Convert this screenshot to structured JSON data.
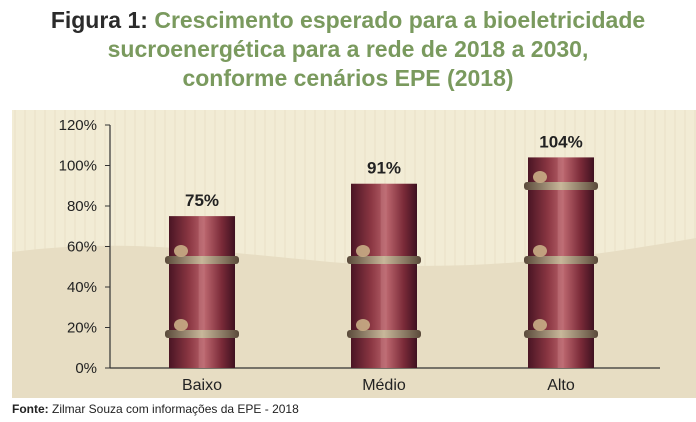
{
  "title": {
    "prefix": "Figura 1:",
    "line1": "Crescimento esperado para a bioeletricidade",
    "line2": "sucroenergética para a rede de 2018 a 2030,",
    "line3": "conforme cenários EPE (2018)"
  },
  "source": {
    "label": "Fonte:",
    "text": "Zilmar Souza com informações da EPE - 2018"
  },
  "colors": {
    "background": "#f2ecd5",
    "wave": "#e7ddc3",
    "cane_dark": "#4a1524",
    "cane_mid": "#8a3642",
    "cane_light": "#b9646c",
    "title_green": "#7a9a5e"
  },
  "chart_data": {
    "type": "bar",
    "categories": [
      "Baixo",
      "Médio",
      "Alto"
    ],
    "values": [
      75,
      91,
      104
    ],
    "data_labels": [
      "75%",
      "91%",
      "104%"
    ],
    "ylim": [
      0,
      120
    ],
    "yticks": [
      0,
      20,
      40,
      60,
      80,
      100,
      120
    ],
    "ytick_labels": [
      "0%",
      "20%",
      "40%",
      "60%",
      "80%",
      "100%",
      "120%"
    ],
    "grid": false
  }
}
